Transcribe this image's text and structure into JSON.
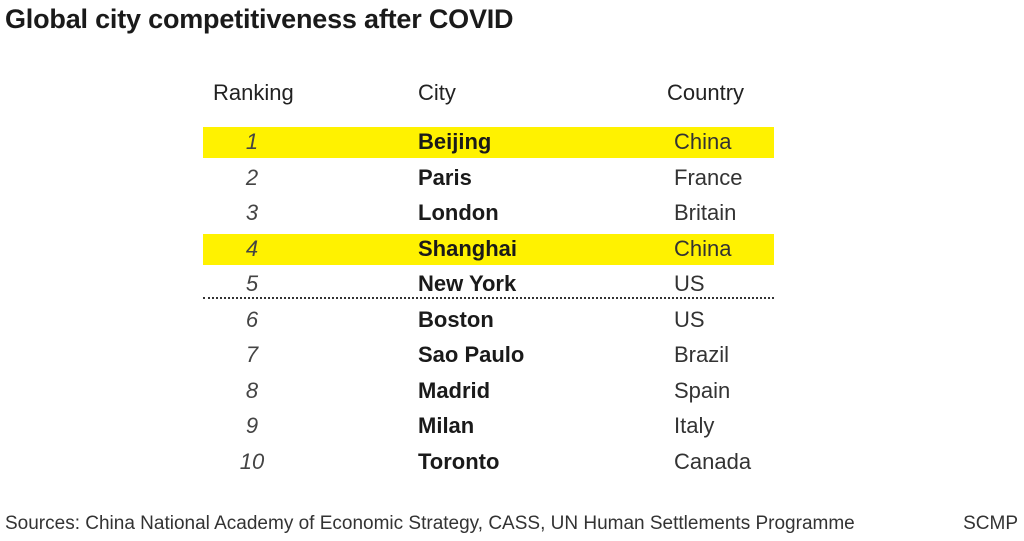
{
  "title": "Global city competitiveness after COVID",
  "source": "Sources: China National Academy of Economic Strategy, CASS, UN Human Settlements Programme",
  "brand": "SCMP",
  "colors": {
    "highlight": "#fff200",
    "text": "#1a1a1a"
  },
  "chart_data": {
    "type": "table",
    "columns": [
      "Ranking",
      "City",
      "Country"
    ],
    "rows": [
      {
        "rank": "1",
        "city": "Beijing",
        "country": "China",
        "highlight": true
      },
      {
        "rank": "2",
        "city": "Paris",
        "country": "France",
        "highlight": false
      },
      {
        "rank": "3",
        "city": "London",
        "country": "Britain",
        "highlight": false
      },
      {
        "rank": "4",
        "city": "Shanghai",
        "country": "China",
        "highlight": true
      },
      {
        "rank": "5",
        "city": "New York",
        "country": "US",
        "highlight": false
      },
      {
        "rank": "6",
        "city": "Boston",
        "country": "US",
        "highlight": false
      },
      {
        "rank": "7",
        "city": "Sao Paulo",
        "country": "Brazil",
        "highlight": false
      },
      {
        "rank": "8",
        "city": "Madrid",
        "country": "Spain",
        "highlight": false
      },
      {
        "rank": "9",
        "city": "Milan",
        "country": "Italy",
        "highlight": false
      },
      {
        "rank": "10",
        "city": "Toronto",
        "country": "Canada",
        "highlight": false
      }
    ],
    "divider_after_rank": 5
  }
}
